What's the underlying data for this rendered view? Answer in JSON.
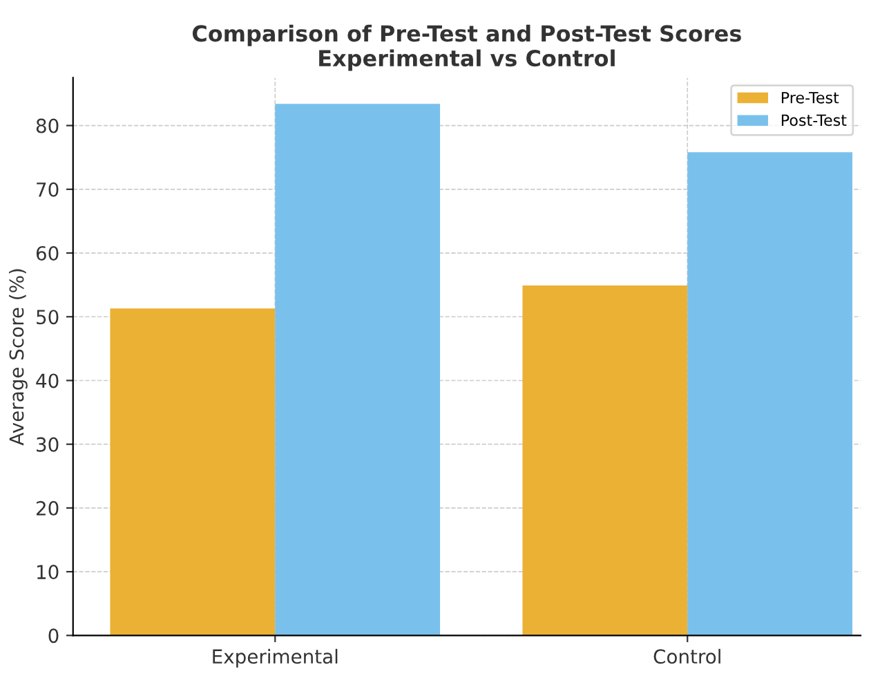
{
  "chart_data": {
    "type": "bar",
    "title": "Comparison of Pre-Test and Post-Test Scores\nExperimental vs Control",
    "ylabel": "Average Score (%)",
    "categories": [
      "Experimental",
      "Control"
    ],
    "series": [
      {
        "name": "Pre-Test",
        "color": "#ebb134",
        "values": [
          51.3,
          54.9
        ]
      },
      {
        "name": "Post-Test",
        "color": "#79c1ec",
        "values": [
          83.4,
          75.8
        ]
      }
    ],
    "ylim": [
      0,
      87.5
    ],
    "yticks": [
      0,
      10,
      20,
      30,
      40,
      50,
      60,
      70,
      80
    ],
    "grid": true,
    "legend": "top right"
  }
}
